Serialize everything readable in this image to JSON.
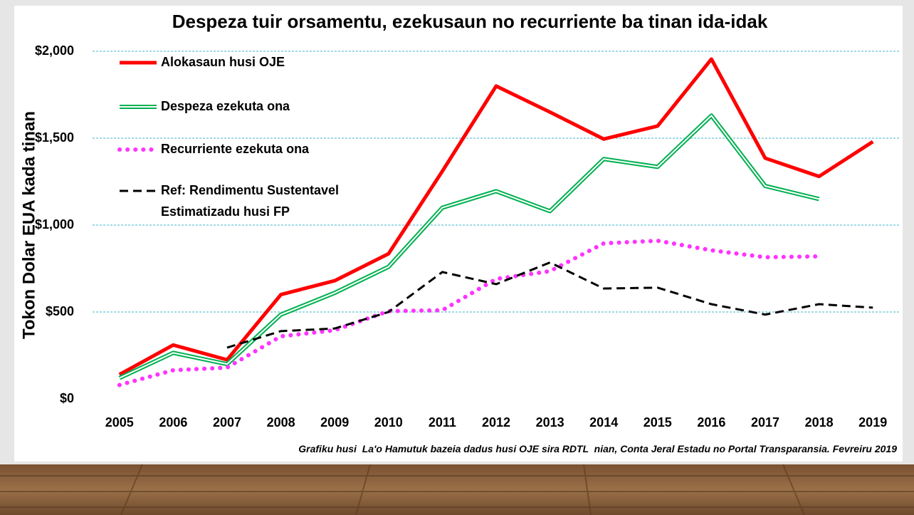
{
  "chart_data": {
    "type": "line",
    "title": "Despeza tuir orsamentu, ezekusaun no recurriente ba tinan ida-idak",
    "y_label": "Tokon Dolar EUA kada tinan",
    "source": "Grafiku husi  La'o Hamutuk bazeia dadus husi OJE sira RDTL  nian, Conta Jeral Estadu no Portal Transparansia. Fevreiru 2019",
    "categories": [
      "2005",
      "2006",
      "2007",
      "2008",
      "2009",
      "2010",
      "2011",
      "2012",
      "2013",
      "2014",
      "2015",
      "2016",
      "2017",
      "2018",
      "2019"
    ],
    "ylim": [
      0,
      2000
    ],
    "yticks": [
      {
        "value": 0,
        "label": "$0"
      },
      {
        "value": 500,
        "label": "$500"
      },
      {
        "value": 1000,
        "label": "$1,000"
      },
      {
        "value": 1500,
        "label": "$1,500"
      },
      {
        "value": 2000,
        "label": "$2,000"
      }
    ],
    "grid": true,
    "legend": "top-left",
    "series": [
      {
        "name": "Alokasaun husi OJE",
        "color": "#ff0000",
        "style": "solid",
        "values": [
          140,
          310,
          225,
          600,
          680,
          835,
          1310,
          1800,
          1650,
          1495,
          1570,
          1955,
          1385,
          1280,
          1480
        ]
      },
      {
        "name": "Despeza ezekuta ona",
        "color": "#00b050",
        "style": "double",
        "values": [
          120,
          265,
          200,
          485,
          610,
          760,
          1100,
          1195,
          1080,
          1380,
          1335,
          1630,
          1225,
          1150,
          null
        ]
      },
      {
        "name": "Recurriente ezekuta ona",
        "color": "#ff33ff",
        "style": "dotted",
        "values": [
          80,
          165,
          180,
          360,
          395,
          505,
          510,
          690,
          735,
          895,
          910,
          855,
          815,
          820,
          null
        ]
      },
      {
        "name": "Ref: Rendimentu Sustentavel\nEstimatizadu husi FP",
        "color": "#000000",
        "style": "dashed",
        "values": [
          null,
          null,
          295,
          390,
          405,
          500,
          730,
          660,
          785,
          635,
          640,
          545,
          485,
          545,
          525
        ]
      }
    ]
  }
}
